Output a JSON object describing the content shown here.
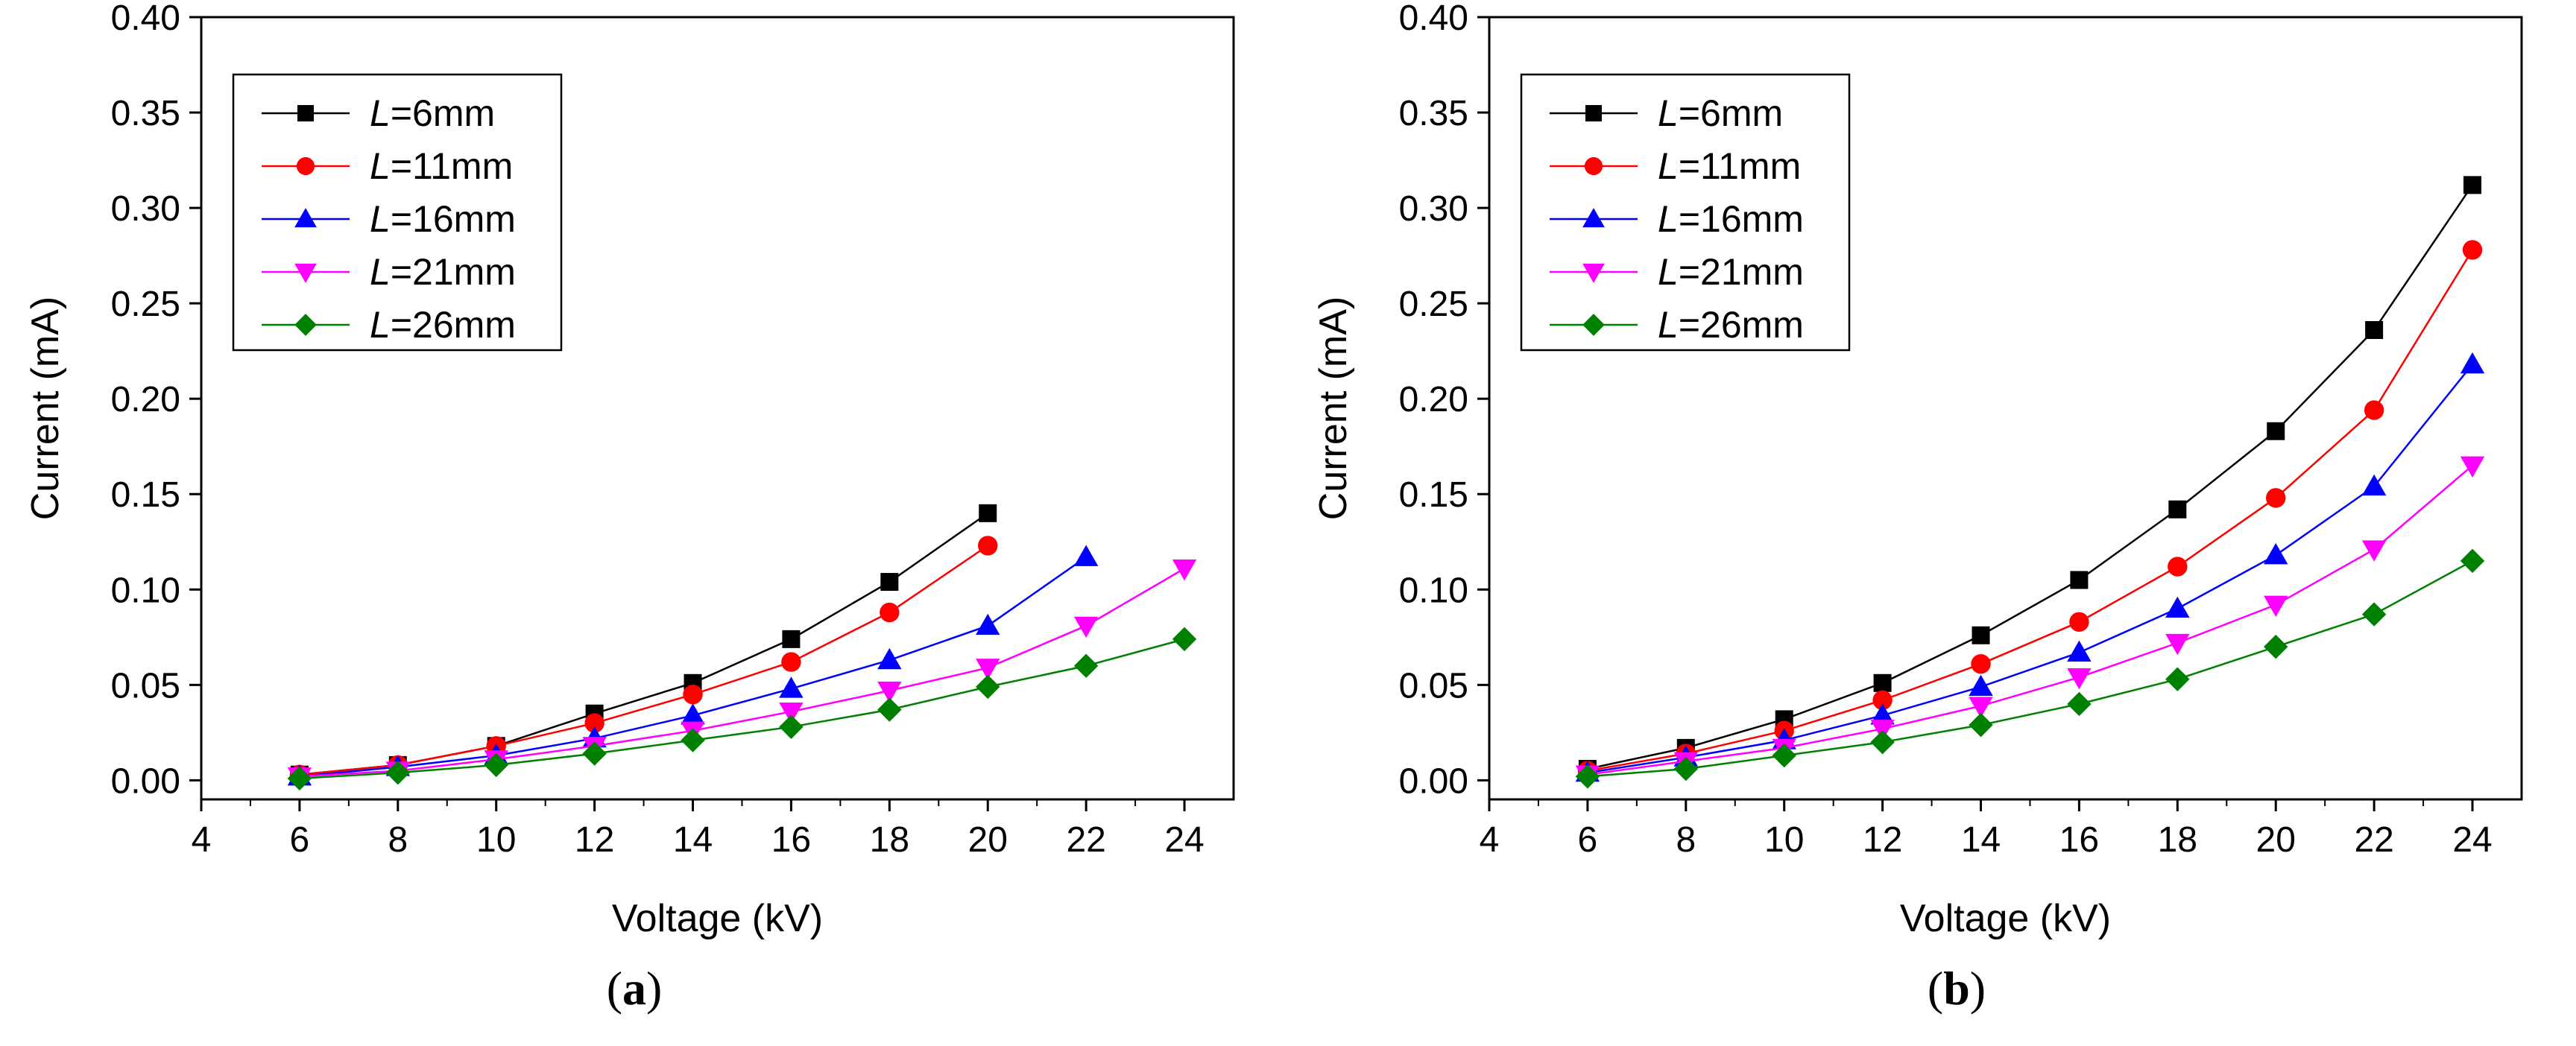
{
  "chart_data": [
    {
      "type": "line",
      "panel_label": "a",
      "xlabel": "Voltage (kV)",
      "ylabel": "Current (mA)",
      "xlim": [
        4,
        25
      ],
      "ylim": [
        -0.01,
        0.4
      ],
      "xticks": [
        4,
        6,
        8,
        10,
        12,
        14,
        16,
        18,
        20,
        22,
        24
      ],
      "yticks": [
        0.0,
        0.05,
        0.1,
        0.15,
        0.2,
        0.25,
        0.3,
        0.35,
        0.4
      ],
      "xtick_labels": [
        "4",
        "6",
        "8",
        "10",
        "12",
        "14",
        "16",
        "18",
        "20",
        "22",
        "24"
      ],
      "ytick_labels": [
        "0.00",
        "0.05",
        "0.10",
        "0.15",
        "0.20",
        "0.25",
        "0.30",
        "0.35",
        "0.40"
      ],
      "legend_position": "top-left",
      "series": [
        {
          "name_prefix": "L",
          "name_suffix": "=6mm",
          "color": "#000000",
          "marker": "square",
          "x": [
            6,
            8,
            10,
            12,
            14,
            16,
            18,
            20
          ],
          "values": [
            0.003,
            0.008,
            0.018,
            0.035,
            0.051,
            0.074,
            0.104,
            0.14
          ]
        },
        {
          "name_prefix": "L",
          "name_suffix": "=11mm",
          "color": "#ff0000",
          "marker": "circle",
          "x": [
            6,
            8,
            10,
            12,
            14,
            16,
            18,
            20
          ],
          "values": [
            0.003,
            0.008,
            0.018,
            0.03,
            0.045,
            0.062,
            0.088,
            0.123
          ]
        },
        {
          "name_prefix": "L",
          "name_suffix": "=16mm",
          "color": "#0000ff",
          "marker": "triangle-up",
          "x": [
            6,
            8,
            10,
            12,
            14,
            16,
            18,
            20,
            22
          ],
          "values": [
            0.002,
            0.007,
            0.013,
            0.022,
            0.034,
            0.048,
            0.063,
            0.081,
            0.117
          ]
        },
        {
          "name_prefix": "L",
          "name_suffix": "=21mm",
          "color": "#ff00ff",
          "marker": "triangle-down",
          "x": [
            6,
            8,
            10,
            12,
            14,
            16,
            18,
            20,
            22,
            24
          ],
          "values": [
            0.002,
            0.005,
            0.011,
            0.018,
            0.026,
            0.036,
            0.047,
            0.059,
            0.081,
            0.111
          ]
        },
        {
          "name_prefix": "L",
          "name_suffix": "=26mm",
          "color": "#008000",
          "marker": "diamond",
          "x": [
            6,
            8,
            10,
            12,
            14,
            16,
            18,
            20,
            22,
            24
          ],
          "values": [
            0.001,
            0.004,
            0.008,
            0.014,
            0.021,
            0.028,
            0.037,
            0.049,
            0.06,
            0.074
          ]
        }
      ]
    },
    {
      "type": "line",
      "panel_label": "b",
      "xlabel": "Voltage (kV)",
      "ylabel": "Current (mA)",
      "xlim": [
        4,
        25
      ],
      "ylim": [
        -0.01,
        0.4
      ],
      "xticks": [
        4,
        6,
        8,
        10,
        12,
        14,
        16,
        18,
        20,
        22,
        24
      ],
      "yticks": [
        0.0,
        0.05,
        0.1,
        0.15,
        0.2,
        0.25,
        0.3,
        0.35,
        0.4
      ],
      "xtick_labels": [
        "4",
        "6",
        "8",
        "10",
        "12",
        "14",
        "16",
        "18",
        "20",
        "22",
        "24"
      ],
      "ytick_labels": [
        "0.00",
        "0.05",
        "0.10",
        "0.15",
        "0.20",
        "0.25",
        "0.30",
        "0.35",
        "0.40"
      ],
      "legend_position": "top-left",
      "series": [
        {
          "name_prefix": "L",
          "name_suffix": "=6mm",
          "color": "#000000",
          "marker": "square",
          "x": [
            6,
            8,
            10,
            12,
            14,
            16,
            18,
            20,
            22,
            24
          ],
          "values": [
            0.006,
            0.017,
            0.032,
            0.051,
            0.076,
            0.105,
            0.142,
            0.183,
            0.236,
            0.312
          ]
        },
        {
          "name_prefix": "L",
          "name_suffix": "=11mm",
          "color": "#ff0000",
          "marker": "circle",
          "x": [
            6,
            8,
            10,
            12,
            14,
            16,
            18,
            20,
            22,
            24
          ],
          "values": [
            0.005,
            0.014,
            0.026,
            0.042,
            0.061,
            0.083,
            0.112,
            0.148,
            0.194,
            0.278
          ]
        },
        {
          "name_prefix": "L",
          "name_suffix": "=16mm",
          "color": "#0000ff",
          "marker": "triangle-up",
          "x": [
            6,
            8,
            10,
            12,
            14,
            16,
            18,
            20,
            22,
            24
          ],
          "values": [
            0.004,
            0.012,
            0.021,
            0.034,
            0.049,
            0.067,
            0.09,
            0.118,
            0.154,
            0.218
          ]
        },
        {
          "name_prefix": "L",
          "name_suffix": "=21mm",
          "color": "#ff00ff",
          "marker": "triangle-down",
          "x": [
            6,
            8,
            10,
            12,
            14,
            16,
            18,
            20,
            22,
            24
          ],
          "values": [
            0.003,
            0.01,
            0.017,
            0.027,
            0.039,
            0.054,
            0.072,
            0.092,
            0.121,
            0.165
          ]
        },
        {
          "name_prefix": "L",
          "name_suffix": "=26mm",
          "color": "#008000",
          "marker": "diamond",
          "x": [
            6,
            8,
            10,
            12,
            14,
            16,
            18,
            20,
            22,
            24
          ],
          "values": [
            0.002,
            0.006,
            0.013,
            0.02,
            0.029,
            0.04,
            0.053,
            0.07,
            0.087,
            0.115
          ]
        }
      ]
    }
  ]
}
